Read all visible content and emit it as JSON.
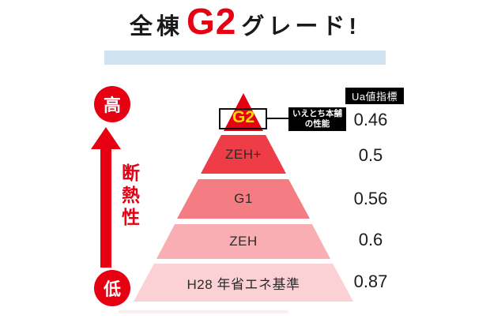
{
  "title": {
    "prefix": "全棟",
    "highlight": "G2",
    "suffix": "グレード!"
  },
  "axis": {
    "high": "高",
    "low": "低",
    "label": "断熱性"
  },
  "callout": {
    "line1": "いえとち本舗",
    "line2": "の性能"
  },
  "ua_header": "Ua値指標",
  "pyramid": {
    "levels": [
      {
        "label": "G2",
        "ua": "0.46",
        "color": "#e60012"
      },
      {
        "label": "ZEH+",
        "ua": "0.5",
        "color": "#ee3d47"
      },
      {
        "label": "G1",
        "ua": "0.56",
        "color": "#f37d83"
      },
      {
        "label": "ZEH",
        "ua": "0.6",
        "color": "#f8aeb3"
      },
      {
        "label": "H28 年省エネ基準",
        "ua": "0.87",
        "color": "#fbd1d5"
      }
    ]
  },
  "colors": {
    "accent_red": "#e60012",
    "title_highlight_blue": "#cfe3f1",
    "g2_text_yellow": "#ffd900",
    "callout_bg": "#000000"
  }
}
